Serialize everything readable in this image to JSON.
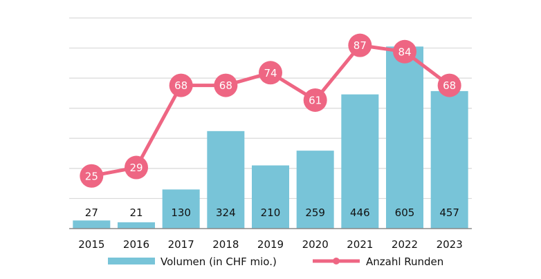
{
  "chart_data": {
    "type": "bar",
    "categories": [
      "2015",
      "2016",
      "2017",
      "2018",
      "2019",
      "2020",
      "2021",
      "2022",
      "2023"
    ],
    "series": [
      {
        "name": "Volumen (in CHF mio.)",
        "type": "bar",
        "values": [
          27,
          21,
          130,
          324,
          210,
          259,
          446,
          605,
          457
        ],
        "color": "#78C4D8",
        "ylim": [
          0,
          700
        ]
      },
      {
        "name": "Anzahl Runden",
        "type": "line",
        "values": [
          25,
          29,
          68,
          68,
          74,
          61,
          87,
          84,
          68
        ],
        "color": "#EE6683",
        "ylim": [
          0,
          100
        ]
      }
    ],
    "grid": true,
    "legend": "bottom",
    "title": "",
    "xlabel": "",
    "ylabel": ""
  }
}
